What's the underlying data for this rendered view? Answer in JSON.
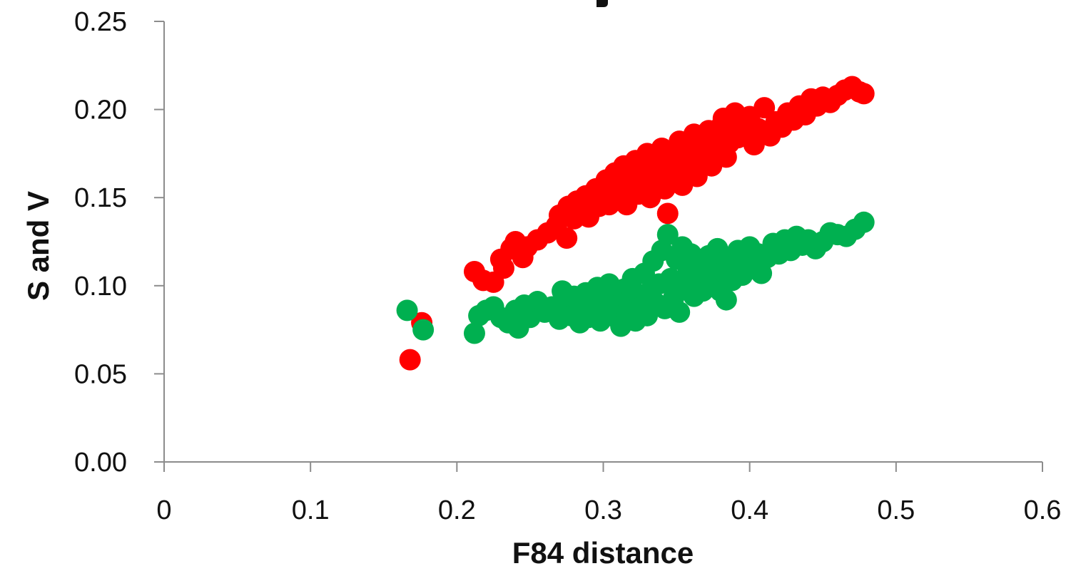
{
  "chart_data": {
    "type": "scatter",
    "title": "",
    "xlabel": "F84 distance",
    "ylabel": "S and V",
    "xlim": [
      0,
      0.6
    ],
    "ylim": [
      0,
      0.25
    ],
    "x_ticks": [
      {
        "value": 0,
        "label": "0"
      },
      {
        "value": 0.1,
        "label": "0.1"
      },
      {
        "value": 0.2,
        "label": "0.2"
      },
      {
        "value": 0.3,
        "label": "0.3"
      },
      {
        "value": 0.4,
        "label": "0.4"
      },
      {
        "value": 0.5,
        "label": "0.5"
      },
      {
        "value": 0.6,
        "label": "0.6"
      }
    ],
    "y_ticks": [
      {
        "value": 0,
        "label": "0.00"
      },
      {
        "value": 0.05,
        "label": "0.05"
      },
      {
        "value": 0.1,
        "label": "0.10"
      },
      {
        "value": 0.15,
        "label": "0.15"
      },
      {
        "value": 0.2,
        "label": "0.20"
      },
      {
        "value": 0.25,
        "label": "0.25"
      }
    ],
    "grid": false,
    "legend": "none",
    "series": [
      {
        "color": "#ff0000",
        "points": [
          [
            0.168,
            0.058
          ],
          [
            0.176,
            0.079
          ],
          [
            0.212,
            0.108
          ],
          [
            0.218,
            0.103
          ],
          [
            0.225,
            0.102
          ],
          [
            0.23,
            0.115
          ],
          [
            0.232,
            0.11
          ],
          [
            0.237,
            0.121
          ],
          [
            0.24,
            0.125
          ],
          [
            0.245,
            0.116
          ],
          [
            0.248,
            0.122
          ],
          [
            0.255,
            0.126
          ],
          [
            0.262,
            0.13
          ],
          [
            0.268,
            0.134
          ],
          [
            0.27,
            0.14
          ],
          [
            0.275,
            0.127
          ],
          [
            0.276,
            0.145
          ],
          [
            0.28,
            0.138
          ],
          [
            0.282,
            0.148
          ],
          [
            0.286,
            0.143
          ],
          [
            0.288,
            0.151
          ],
          [
            0.29,
            0.139
          ],
          [
            0.292,
            0.147
          ],
          [
            0.295,
            0.155
          ],
          [
            0.297,
            0.145
          ],
          [
            0.3,
            0.15
          ],
          [
            0.302,
            0.16
          ],
          [
            0.304,
            0.146
          ],
          [
            0.306,
            0.153
          ],
          [
            0.308,
            0.164
          ],
          [
            0.31,
            0.149
          ],
          [
            0.312,
            0.158
          ],
          [
            0.314,
            0.168
          ],
          [
            0.316,
            0.146
          ],
          [
            0.318,
            0.155
          ],
          [
            0.32,
            0.163
          ],
          [
            0.322,
            0.171
          ],
          [
            0.324,
            0.152
          ],
          [
            0.326,
            0.16
          ],
          [
            0.328,
            0.167
          ],
          [
            0.33,
            0.175
          ],
          [
            0.332,
            0.15
          ],
          [
            0.334,
            0.158
          ],
          [
            0.336,
            0.164
          ],
          [
            0.338,
            0.171
          ],
          [
            0.34,
            0.178
          ],
          [
            0.342,
            0.155
          ],
          [
            0.344,
            0.141
          ],
          [
            0.346,
            0.162
          ],
          [
            0.348,
            0.169
          ],
          [
            0.35,
            0.175
          ],
          [
            0.352,
            0.182
          ],
          [
            0.354,
            0.157
          ],
          [
            0.356,
            0.165
          ],
          [
            0.358,
            0.172
          ],
          [
            0.36,
            0.179
          ],
          [
            0.362,
            0.186
          ],
          [
            0.364,
            0.162
          ],
          [
            0.366,
            0.17
          ],
          [
            0.368,
            0.177
          ],
          [
            0.37,
            0.184
          ],
          [
            0.372,
            0.188
          ],
          [
            0.374,
            0.168
          ],
          [
            0.376,
            0.175
          ],
          [
            0.378,
            0.181
          ],
          [
            0.38,
            0.19
          ],
          [
            0.382,
            0.195
          ],
          [
            0.384,
            0.173
          ],
          [
            0.386,
            0.181
          ],
          [
            0.388,
            0.188
          ],
          [
            0.39,
            0.198
          ],
          [
            0.392,
            0.184
          ],
          [
            0.395,
            0.193
          ],
          [
            0.398,
            0.187
          ],
          [
            0.4,
            0.196
          ],
          [
            0.403,
            0.18
          ],
          [
            0.406,
            0.189
          ],
          [
            0.41,
            0.201
          ],
          [
            0.414,
            0.185
          ],
          [
            0.418,
            0.193
          ],
          [
            0.422,
            0.19
          ],
          [
            0.426,
            0.198
          ],
          [
            0.43,
            0.194
          ],
          [
            0.434,
            0.202
          ],
          [
            0.438,
            0.197
          ],
          [
            0.442,
            0.206
          ],
          [
            0.446,
            0.202
          ],
          [
            0.45,
            0.207
          ],
          [
            0.455,
            0.204
          ],
          [
            0.46,
            0.208
          ],
          [
            0.465,
            0.211
          ],
          [
            0.47,
            0.213
          ],
          [
            0.475,
            0.21
          ],
          [
            0.478,
            0.209
          ]
        ]
      },
      {
        "color": "#00b050",
        "points": [
          [
            0.166,
            0.086
          ],
          [
            0.177,
            0.075
          ],
          [
            0.212,
            0.073
          ],
          [
            0.215,
            0.083
          ],
          [
            0.22,
            0.086
          ],
          [
            0.225,
            0.088
          ],
          [
            0.23,
            0.082
          ],
          [
            0.235,
            0.079
          ],
          [
            0.24,
            0.086
          ],
          [
            0.242,
            0.076
          ],
          [
            0.246,
            0.089
          ],
          [
            0.25,
            0.082
          ],
          [
            0.255,
            0.091
          ],
          [
            0.26,
            0.085
          ],
          [
            0.265,
            0.088
          ],
          [
            0.27,
            0.081
          ],
          [
            0.272,
            0.097
          ],
          [
            0.275,
            0.09
          ],
          [
            0.278,
            0.083
          ],
          [
            0.28,
            0.094
          ],
          [
            0.284,
            0.079
          ],
          [
            0.286,
            0.088
          ],
          [
            0.288,
            0.096
          ],
          [
            0.29,
            0.082
          ],
          [
            0.292,
            0.091
          ],
          [
            0.294,
            0.086
          ],
          [
            0.296,
            0.099
          ],
          [
            0.298,
            0.08
          ],
          [
            0.3,
            0.093
          ],
          [
            0.302,
            0.088
          ],
          [
            0.304,
            0.101
          ],
          [
            0.306,
            0.083
          ],
          [
            0.308,
            0.095
          ],
          [
            0.31,
            0.089
          ],
          [
            0.312,
            0.077
          ],
          [
            0.314,
            0.098
          ],
          [
            0.316,
            0.085
          ],
          [
            0.318,
            0.092
          ],
          [
            0.32,
            0.104
          ],
          [
            0.322,
            0.08
          ],
          [
            0.324,
            0.095
          ],
          [
            0.326,
            0.088
          ],
          [
            0.328,
            0.107
          ],
          [
            0.33,
            0.083
          ],
          [
            0.332,
            0.097
          ],
          [
            0.334,
            0.114
          ],
          [
            0.336,
            0.09
          ],
          [
            0.338,
            0.101
          ],
          [
            0.34,
            0.12
          ],
          [
            0.342,
            0.087
          ],
          [
            0.344,
            0.129
          ],
          [
            0.346,
            0.104
          ],
          [
            0.348,
            0.093
          ],
          [
            0.35,
            0.115
          ],
          [
            0.352,
            0.085
          ],
          [
            0.354,
            0.122
          ],
          [
            0.356,
            0.098
          ],
          [
            0.358,
            0.108
          ],
          [
            0.36,
            0.118
          ],
          [
            0.362,
            0.094
          ],
          [
            0.364,
            0.103
          ],
          [
            0.366,
            0.113
          ],
          [
            0.368,
            0.097
          ],
          [
            0.37,
            0.107
          ],
          [
            0.372,
            0.117
          ],
          [
            0.374,
            0.101
          ],
          [
            0.376,
            0.111
          ],
          [
            0.378,
            0.121
          ],
          [
            0.38,
            0.097
          ],
          [
            0.382,
            0.108
          ],
          [
            0.384,
            0.092
          ],
          [
            0.386,
            0.116
          ],
          [
            0.388,
            0.103
          ],
          [
            0.39,
            0.112
          ],
          [
            0.392,
            0.12
          ],
          [
            0.395,
            0.106
          ],
          [
            0.398,
            0.114
          ],
          [
            0.4,
            0.122
          ],
          [
            0.403,
            0.11
          ],
          [
            0.406,
            0.118
          ],
          [
            0.408,
            0.107
          ],
          [
            0.412,
            0.116
          ],
          [
            0.416,
            0.124
          ],
          [
            0.42,
            0.118
          ],
          [
            0.424,
            0.126
          ],
          [
            0.428,
            0.12
          ],
          [
            0.432,
            0.128
          ],
          [
            0.436,
            0.123
          ],
          [
            0.44,
            0.126
          ],
          [
            0.445,
            0.121
          ],
          [
            0.45,
            0.125
          ],
          [
            0.455,
            0.13
          ],
          [
            0.46,
            0.129
          ],
          [
            0.466,
            0.128
          ],
          [
            0.472,
            0.132
          ],
          [
            0.478,
            0.136
          ]
        ]
      }
    ]
  }
}
